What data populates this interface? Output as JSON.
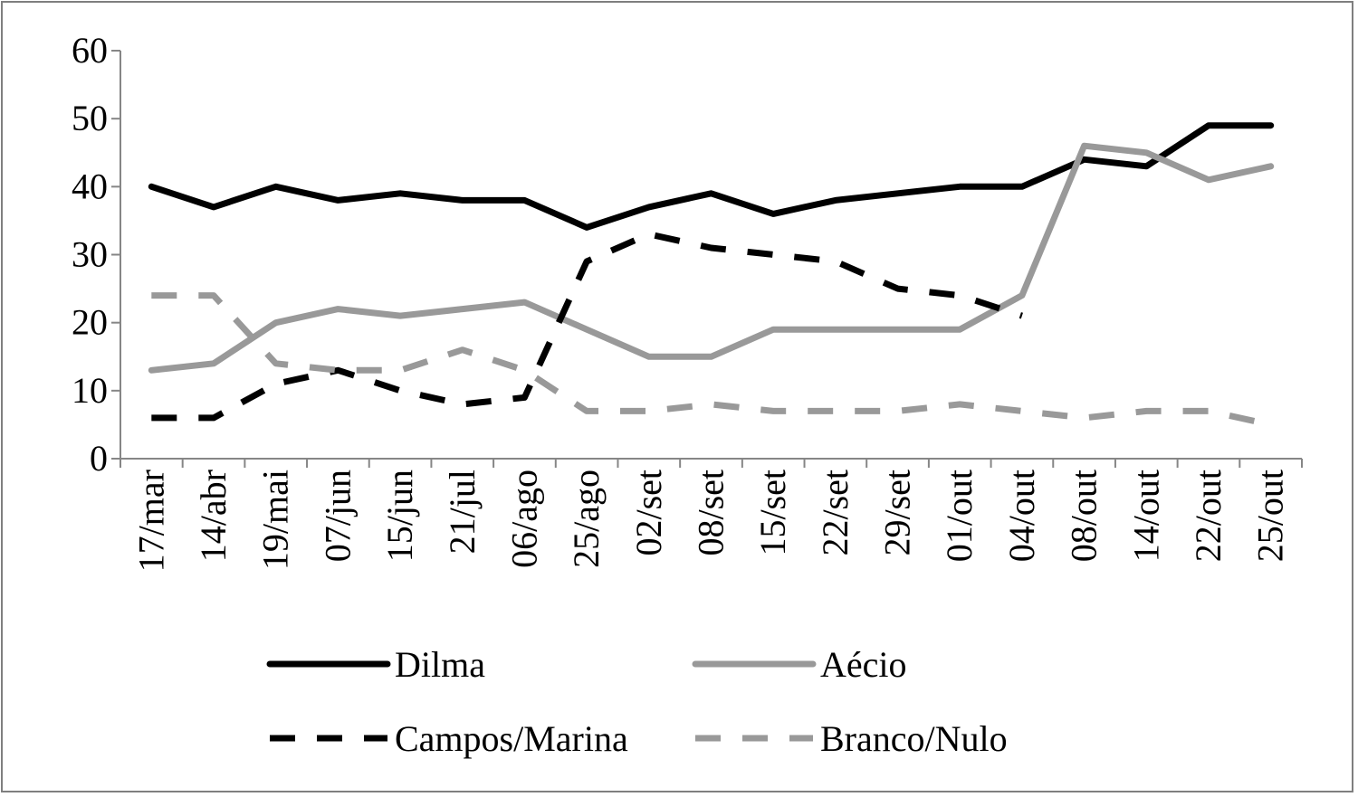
{
  "chart_data": {
    "type": "line",
    "title": "",
    "xlabel": "",
    "ylabel": "",
    "ylim": [
      0,
      60
    ],
    "yticks": [
      0,
      10,
      20,
      30,
      40,
      50,
      60
    ],
    "grid": false,
    "legend_position": "bottom",
    "categories": [
      "17/mar",
      "14/abr",
      "19/mai",
      "07/jun",
      "15/jun",
      "21/jul",
      "06/ago",
      "25/ago",
      "02/set",
      "08/set",
      "15/set",
      "22/set",
      "29/set",
      "01/out",
      "04/out",
      "08/out",
      "14/out",
      "22/out",
      "25/out"
    ],
    "series": [
      {
        "name": "Dilma",
        "color": "#000000",
        "style": "solid",
        "values": [
          40,
          37,
          40,
          38,
          39,
          38,
          38,
          34,
          37,
          39,
          36,
          38,
          39,
          40,
          40,
          44,
          43,
          49,
          49
        ]
      },
      {
        "name": "Aécio",
        "color": "#999999",
        "style": "solid",
        "values": [
          13,
          14,
          20,
          22,
          21,
          22,
          23,
          19,
          15,
          15,
          19,
          19,
          19,
          19,
          24,
          46,
          45,
          41,
          43
        ]
      },
      {
        "name": "Campos/Marina",
        "color": "#000000",
        "style": "dashed",
        "values": [
          6,
          6,
          11,
          13,
          10,
          8,
          9,
          29,
          33,
          31,
          30,
          29,
          25,
          24,
          21,
          null,
          null,
          null,
          null
        ]
      },
      {
        "name": "Branco/Nulo",
        "color": "#999999",
        "style": "dashed",
        "values": [
          24,
          24,
          14,
          13,
          13,
          16,
          13,
          7,
          7,
          8,
          7,
          7,
          7,
          8,
          7,
          6,
          7,
          7,
          5
        ]
      }
    ]
  }
}
